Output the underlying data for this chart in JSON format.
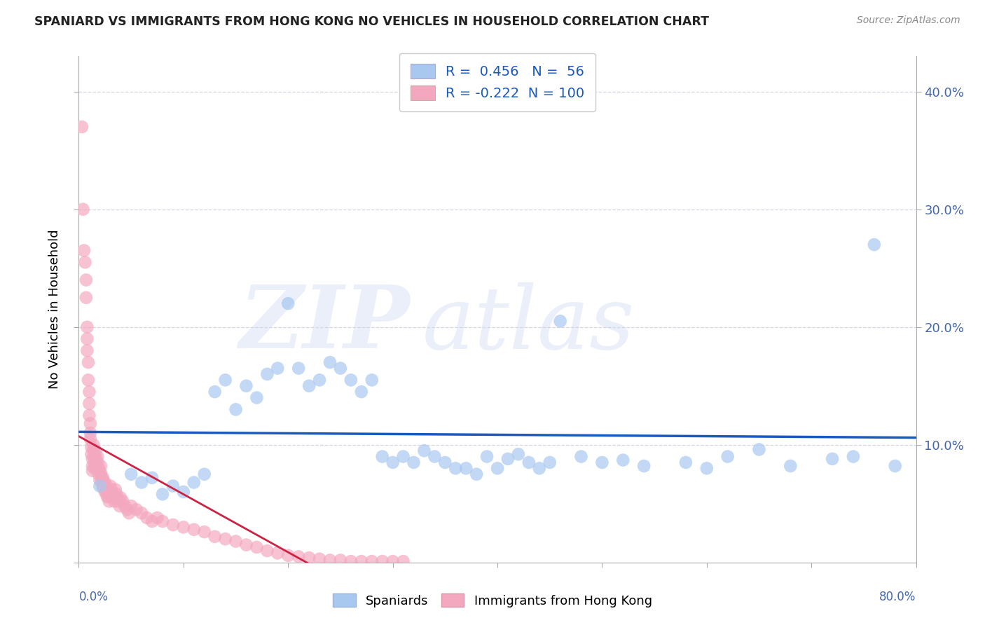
{
  "title": "SPANIARD VS IMMIGRANTS FROM HONG KONG NO VEHICLES IN HOUSEHOLD CORRELATION CHART",
  "source": "Source: ZipAtlas.com",
  "ylabel": "No Vehicles in Household",
  "xlim": [
    0.0,
    0.8
  ],
  "ylim": [
    0.0,
    0.43
  ],
  "ytick_vals": [
    0.0,
    0.1,
    0.2,
    0.3,
    0.4
  ],
  "blue_R": 0.456,
  "blue_N": 56,
  "pink_R": -0.222,
  "pink_N": 100,
  "legend_label_blue": "Spaniards",
  "legend_label_pink": "Immigrants from Hong Kong",
  "blue_color": "#a8c8f0",
  "pink_color": "#f4a8c0",
  "blue_line_color": "#1a5abf",
  "pink_line_color": "#cc2244",
  "blue_scatter_x": [
    0.02,
    0.05,
    0.06,
    0.07,
    0.08,
    0.09,
    0.1,
    0.11,
    0.12,
    0.13,
    0.14,
    0.15,
    0.16,
    0.17,
    0.18,
    0.19,
    0.2,
    0.21,
    0.22,
    0.23,
    0.24,
    0.25,
    0.26,
    0.27,
    0.28,
    0.29,
    0.3,
    0.31,
    0.32,
    0.33,
    0.34,
    0.35,
    0.36,
    0.37,
    0.38,
    0.39,
    0.4,
    0.41,
    0.42,
    0.43,
    0.44,
    0.45,
    0.46,
    0.48,
    0.5,
    0.52,
    0.54,
    0.58,
    0.6,
    0.62,
    0.65,
    0.68,
    0.72,
    0.74,
    0.76,
    0.78
  ],
  "blue_scatter_y": [
    0.065,
    0.075,
    0.068,
    0.072,
    0.058,
    0.065,
    0.06,
    0.068,
    0.075,
    0.145,
    0.155,
    0.13,
    0.15,
    0.14,
    0.16,
    0.165,
    0.22,
    0.165,
    0.15,
    0.155,
    0.17,
    0.165,
    0.155,
    0.145,
    0.155,
    0.09,
    0.085,
    0.09,
    0.085,
    0.095,
    0.09,
    0.085,
    0.08,
    0.08,
    0.075,
    0.09,
    0.08,
    0.088,
    0.092,
    0.085,
    0.08,
    0.085,
    0.205,
    0.09,
    0.085,
    0.087,
    0.082,
    0.085,
    0.08,
    0.09,
    0.096,
    0.082,
    0.088,
    0.09,
    0.27,
    0.082
  ],
  "pink_scatter_x": [
    0.003,
    0.004,
    0.005,
    0.006,
    0.007,
    0.007,
    0.008,
    0.008,
    0.008,
    0.009,
    0.009,
    0.01,
    0.01,
    0.01,
    0.011,
    0.011,
    0.011,
    0.012,
    0.012,
    0.013,
    0.013,
    0.013,
    0.014,
    0.014,
    0.015,
    0.015,
    0.015,
    0.016,
    0.016,
    0.017,
    0.017,
    0.018,
    0.018,
    0.019,
    0.019,
    0.02,
    0.02,
    0.021,
    0.021,
    0.022,
    0.022,
    0.023,
    0.023,
    0.024,
    0.024,
    0.025,
    0.025,
    0.026,
    0.026,
    0.027,
    0.027,
    0.028,
    0.028,
    0.029,
    0.029,
    0.03,
    0.031,
    0.032,
    0.033,
    0.034,
    0.035,
    0.036,
    0.037,
    0.038,
    0.039,
    0.04,
    0.042,
    0.044,
    0.046,
    0.048,
    0.05,
    0.055,
    0.06,
    0.065,
    0.07,
    0.075,
    0.08,
    0.09,
    0.1,
    0.11,
    0.12,
    0.13,
    0.14,
    0.15,
    0.16,
    0.17,
    0.18,
    0.19,
    0.2,
    0.21,
    0.22,
    0.23,
    0.24,
    0.25,
    0.26,
    0.27,
    0.28,
    0.29,
    0.3,
    0.31
  ],
  "pink_scatter_y": [
    0.37,
    0.3,
    0.265,
    0.255,
    0.24,
    0.225,
    0.2,
    0.19,
    0.18,
    0.17,
    0.155,
    0.145,
    0.135,
    0.125,
    0.118,
    0.11,
    0.105,
    0.098,
    0.092,
    0.088,
    0.082,
    0.078,
    0.1,
    0.095,
    0.09,
    0.085,
    0.08,
    0.095,
    0.09,
    0.085,
    0.08,
    0.09,
    0.085,
    0.08,
    0.075,
    0.07,
    0.078,
    0.082,
    0.076,
    0.072,
    0.068,
    0.064,
    0.072,
    0.068,
    0.064,
    0.06,
    0.068,
    0.064,
    0.06,
    0.056,
    0.064,
    0.06,
    0.056,
    0.052,
    0.058,
    0.065,
    0.062,
    0.058,
    0.055,
    0.052,
    0.062,
    0.058,
    0.055,
    0.052,
    0.048,
    0.055,
    0.052,
    0.048,
    0.045,
    0.042,
    0.048,
    0.045,
    0.042,
    0.038,
    0.035,
    0.038,
    0.035,
    0.032,
    0.03,
    0.028,
    0.026,
    0.022,
    0.02,
    0.018,
    0.015,
    0.013,
    0.01,
    0.008,
    0.006,
    0.005,
    0.004,
    0.003,
    0.002,
    0.002,
    0.001,
    0.001,
    0.001,
    0.001,
    0.001,
    0.001
  ]
}
